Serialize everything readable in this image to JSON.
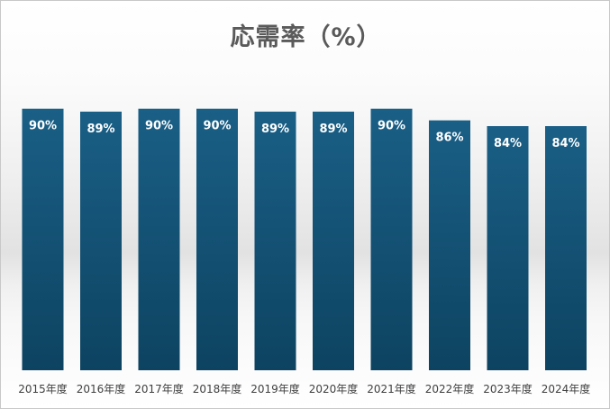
{
  "chart_data": {
    "type": "bar",
    "title": "応需率（%）",
    "categories": [
      "2015年度",
      "2016年度",
      "2017年度",
      "2018年度",
      "2019年度",
      "2020年度",
      "2021年度",
      "2022年度",
      "2023年度",
      "2024年度"
    ],
    "series": [
      {
        "values": [
          90,
          89,
          90,
          90,
          89,
          89,
          90,
          86,
          84,
          84
        ],
        "data_labels": [
          "90%",
          "89%",
          "90%",
          "90%",
          "89%",
          "89%",
          "90%",
          "86%",
          "84%",
          "84%"
        ]
      }
    ],
    "xlabel": "",
    "ylabel": "",
    "ylim": [
      0,
      100
    ],
    "grid": false,
    "legend": "none",
    "bar_color_top": "#1a5f86",
    "bar_color_bottom": "#0d4361"
  }
}
